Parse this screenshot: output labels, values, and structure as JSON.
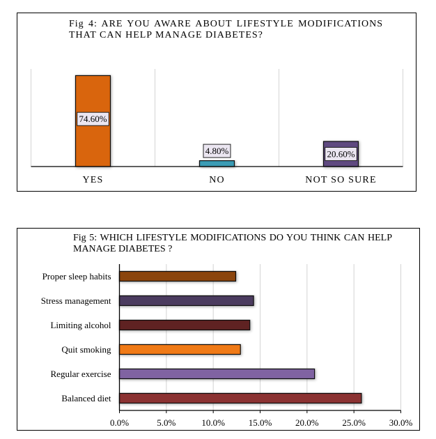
{
  "chart_data": [
    {
      "type": "bar",
      "orientation": "vertical",
      "title": "Fig 4: ARE YOU AWARE ABOUT LIFESTYLE MODIFICATIONS THAT CAN HELP MANAGE DIABETES?",
      "categories": [
        "YES",
        "NO",
        "NOT SO SURE"
      ],
      "values": [
        74.6,
        4.8,
        20.6
      ],
      "data_labels": [
        "74.60%",
        "4.80%",
        "20.60%"
      ],
      "colors": [
        "#d9650a",
        "#3a9cb5",
        "#5e4a80"
      ],
      "xlabel": "",
      "ylabel": "",
      "ylim": [
        0,
        80
      ],
      "grid": "vertical category separators",
      "legend": "none"
    },
    {
      "type": "bar",
      "orientation": "horizontal",
      "title": "Fig 5: WHICH LIFESTYLE MODIFICATIONS DO YOU THINK CAN HELP MANAGE DIABETES ?",
      "categories": [
        "Proper sleep habits",
        "Stress management",
        "Limiting alcohol",
        "Quit smoking",
        "Regular exercise",
        "Balanced diet"
      ],
      "values": [
        12.4,
        14.3,
        13.9,
        12.9,
        20.8,
        25.8
      ],
      "colors": [
        "#8b4410",
        "#4b3a5e",
        "#5e2424",
        "#f07a14",
        "#8064a2",
        "#8b3333"
      ],
      "xlabel": "",
      "ylabel": "",
      "xlim": [
        0,
        30
      ],
      "xticks": [
        "0.0%",
        "5.0%",
        "10.0%",
        "15.0%",
        "20.0%",
        "25.0%",
        "30.0%"
      ],
      "grid": "vertical gridlines",
      "legend": "none"
    }
  ]
}
